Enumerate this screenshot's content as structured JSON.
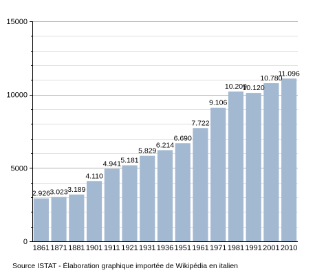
{
  "chart_data": {
    "type": "bar",
    "categories": [
      "1861",
      "1871",
      "1881",
      "1901",
      "1911",
      "1921",
      "1931",
      "1936",
      "1951",
      "1961",
      "1971",
      "1981",
      "1991",
      "2001",
      "2010"
    ],
    "values": [
      2926,
      3023,
      3189,
      4110,
      4941,
      5181,
      5829,
      6214,
      6690,
      7722,
      9106,
      10209,
      10120,
      10780,
      11096
    ],
    "value_labels": [
      "2.926",
      "3.023",
      "3.189",
      "4.110",
      "4.941",
      "5.181",
      "5.829",
      "6.214",
      "6.690",
      "7.722",
      "9.106",
      "10.209",
      "10.120",
      "10.780",
      "11.096"
    ],
    "ylim": [
      0,
      15000
    ],
    "yticks": [
      0,
      5000,
      10000,
      15000
    ],
    "ytick_labels": [
      "0",
      "5000",
      "10000",
      "15000"
    ],
    "y_minor_step": 1000,
    "grid": "horizontal",
    "title": "",
    "xlabel": "",
    "ylabel": "",
    "bar_color": "#a3b8d1"
  },
  "footer": {
    "source": "Source ISTAT - Élaboration graphique importée de Wikipédia en italien"
  }
}
